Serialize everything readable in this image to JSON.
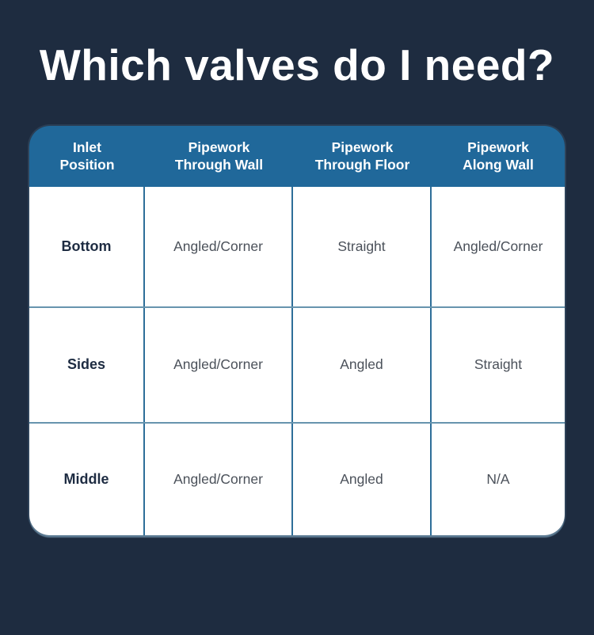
{
  "page": {
    "title": "Which valves do I need?",
    "background_color": "#1e2c40",
    "title_color": "#ffffff"
  },
  "table": {
    "header_bg": "#20689a",
    "header_text_color": "#ffffff",
    "body_bg": "#ffffff",
    "column_border_color": "#2e6e99",
    "row_border_color": "#6794ae",
    "row_label_color": "#1e2c42",
    "cell_text_color": "#4b515a",
    "columns": [
      {
        "line1": "Inlet",
        "line2": "Position"
      },
      {
        "line1": "Pipework",
        "line2": "Through Wall"
      },
      {
        "line1": "Pipework",
        "line2": "Through Floor"
      },
      {
        "line1": "Pipework",
        "line2": "Along Wall"
      }
    ],
    "rows": [
      {
        "label": "Bottom",
        "cells": [
          "Angled/Corner",
          "Straight",
          "Angled/Corner"
        ]
      },
      {
        "label": "Sides",
        "cells": [
          "Angled/Corner",
          "Angled",
          "Straight"
        ]
      },
      {
        "label": "Middle",
        "cells": [
          "Angled/Corner",
          "Angled",
          "N/A"
        ]
      }
    ]
  },
  "chart_data": {
    "type": "table",
    "title": "Which valves do I need?",
    "columns": [
      "Inlet Position",
      "Pipework Through Wall",
      "Pipework Through Floor",
      "Pipework Along Wall"
    ],
    "rows": [
      [
        "Bottom",
        "Angled/Corner",
        "Straight",
        "Angled/Corner"
      ],
      [
        "Sides",
        "Angled/Corner",
        "Angled",
        "Straight"
      ],
      [
        "Middle",
        "Angled/Corner",
        "Angled",
        "N/A"
      ]
    ]
  }
}
